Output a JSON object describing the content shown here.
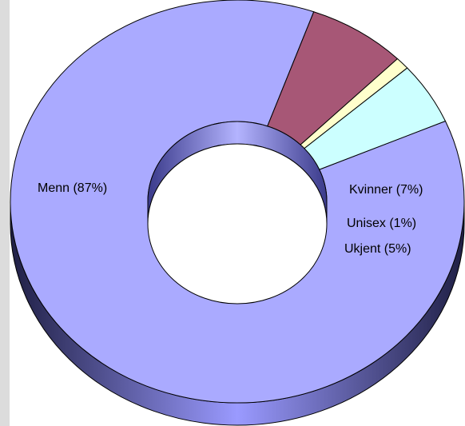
{
  "chart_data": {
    "type": "pie",
    "variant": "3d-donut",
    "slices": [
      {
        "label": "Menn (87%)",
        "value": 87,
        "color": "#aaaaff"
      },
      {
        "label": "Kvinner (7%)",
        "value": 7,
        "color": "#a75776"
      },
      {
        "label": "Unisex (1%)",
        "value": 1,
        "color": "#ffffcc"
      },
      {
        "label": "Ukjent (5%)",
        "value": 5,
        "color": "#ccffff"
      }
    ],
    "title": "",
    "legend": "none"
  },
  "colors": {
    "outline": "#000000",
    "shadow": "#2a2a55"
  }
}
